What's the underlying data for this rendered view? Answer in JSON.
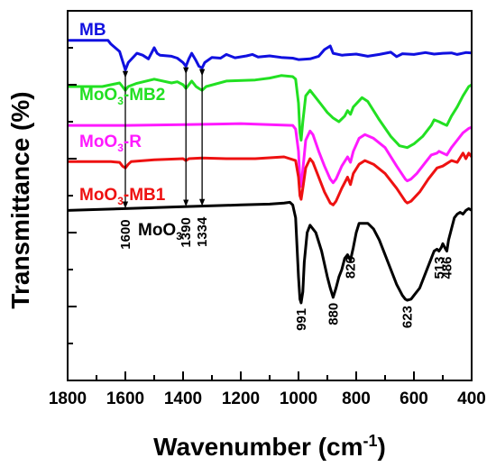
{
  "chart_data": {
    "type": "line",
    "title": "",
    "xlabel": "Wavenumber (cm",
    "xlabel_sup": "-1",
    "xlabel_end": ")",
    "ylabel": "Transmittance (%)",
    "xlim": [
      1800,
      400
    ],
    "x_reversed": true,
    "x_ticks": [
      "1800",
      "1600",
      "1400",
      "1200",
      "1000",
      "800",
      "600",
      "400"
    ],
    "y_tick_labels_shown": false,
    "grid": false,
    "legend": "inline labels beside each curve",
    "series": [
      {
        "name": "MB",
        "name_sub": "",
        "name_end": "",
        "color": "#1010e0",
        "x": [
          1800,
          1660,
          1650,
          1620,
          1610,
          1600,
          1590,
          1560,
          1540,
          1520,
          1500,
          1490,
          1480,
          1440,
          1420,
          1400,
          1390,
          1380,
          1370,
          1355,
          1345,
          1334,
          1325,
          1300,
          1270,
          1250,
          1220,
          1180,
          1160,
          1140,
          1100,
          1060,
          1020,
          1000,
          960,
          930,
          910,
          890,
          880,
          850,
          800,
          760,
          720,
          680,
          660,
          640,
          600,
          560,
          530,
          500,
          470,
          450,
          420,
          400
        ],
        "y": [
          8.0,
          8.0,
          9.0,
          11.0,
          13.5,
          16.0,
          14.0,
          11.5,
          12.0,
          13.0,
          10.0,
          11.5,
          12.0,
          12.3,
          12.8,
          14.0,
          15.0,
          13.0,
          11.5,
          13.5,
          15.0,
          15.5,
          14.0,
          12.6,
          12.8,
          11.8,
          12.7,
          12.2,
          11.8,
          12.5,
          12.2,
          12.6,
          12.8,
          13.2,
          13.0,
          12.3,
          10.5,
          9.5,
          11.5,
          12.0,
          11.7,
          12.3,
          11.8,
          11.2,
          12.4,
          11.6,
          11.8,
          11.3,
          11.7,
          11.5,
          11.4,
          11.8,
          11.3,
          11.4
        ]
      },
      {
        "name": "MoO",
        "name_sub": "3",
        "name_end": "-MB2",
        "color": "#22e022",
        "x": [
          1800,
          1680,
          1650,
          1620,
          1610,
          1600,
          1590,
          1560,
          1500,
          1440,
          1420,
          1400,
          1390,
          1380,
          1370,
          1355,
          1345,
          1334,
          1320,
          1250,
          1150,
          1100,
          1060,
          1020,
          1010,
          1000,
          995,
          991,
          985,
          975,
          960,
          940,
          920,
          900,
          880,
          860,
          840,
          830,
          820,
          810,
          780,
          760,
          720,
          680,
          650,
          623,
          600,
          570,
          540,
          530,
          513,
          500,
          486,
          470,
          450,
          430,
          410,
          400
        ],
        "y": [
          20.5,
          20.5,
          20.0,
          19.5,
          20.5,
          21.5,
          20.5,
          19.6,
          18.5,
          19.5,
          19.2,
          20.0,
          21.0,
          20.0,
          19.0,
          20.5,
          21.0,
          21.5,
          20.5,
          19.0,
          18.7,
          18.2,
          17.5,
          17.8,
          18.5,
          25.0,
          33.0,
          35.0,
          30.0,
          23.0,
          21.5,
          23.5,
          25.5,
          27.5,
          29.0,
          30.0,
          28.5,
          27.0,
          28.0,
          26.0,
          23.5,
          24.5,
          29.5,
          34.0,
          36.5,
          37.0,
          36.0,
          34.0,
          31.0,
          29.5,
          30.0,
          30.5,
          31.0,
          28.5,
          26.0,
          23.0,
          20.5,
          20.0
        ]
      },
      {
        "name": "MoO",
        "name_sub": "3",
        "name_end": "-R",
        "color": "#ff1aff",
        "x": [
          1800,
          1600,
          1400,
          1200,
          1100,
          1020,
          1010,
          1000,
          995,
          991,
          985,
          975,
          960,
          950,
          930,
          910,
          890,
          880,
          870,
          850,
          830,
          820,
          810,
          790,
          770,
          740,
          700,
          660,
          630,
          623,
          610,
          590,
          560,
          540,
          520,
          513,
          500,
          486,
          470,
          450,
          430,
          410,
          400
        ],
        "y": [
          31.0,
          31.0,
          30.8,
          30.5,
          30.8,
          31.0,
          32.0,
          38.0,
          46.0,
          47.5,
          43.0,
          35.0,
          32.5,
          33.5,
          38.0,
          42.0,
          45.5,
          46.5,
          45.5,
          42.0,
          39.5,
          41.0,
          38.0,
          34.5,
          33.5,
          34.5,
          37.0,
          42.0,
          45.5,
          46.0,
          45.5,
          44.0,
          41.0,
          39.0,
          38.5,
          38.0,
          38.5,
          39.0,
          37.0,
          35.0,
          33.0,
          31.8,
          31.5
        ]
      },
      {
        "name": "MoO",
        "name_sub": "3",
        "name_end": "-MB1",
        "color": "#ee1111",
        "x": [
          1800,
          1650,
          1620,
          1610,
          1600,
          1590,
          1580,
          1500,
          1400,
          1390,
          1380,
          1334,
          1250,
          1150,
          1050,
          1010,
          1000,
          995,
          991,
          985,
          975,
          960,
          950,
          930,
          910,
          890,
          880,
          870,
          850,
          830,
          820,
          810,
          790,
          770,
          740,
          700,
          660,
          630,
          623,
          610,
          580,
          550,
          520,
          500,
          470,
          450,
          430,
          420,
          410,
          400
        ],
        "y": [
          40.8,
          40.8,
          41.0,
          42.0,
          42.5,
          41.5,
          40.8,
          40.3,
          40.0,
          40.5,
          40.0,
          39.8,
          40.0,
          40.0,
          39.5,
          40.5,
          45.0,
          50.0,
          51.0,
          48.0,
          42.5,
          40.0,
          41.0,
          45.0,
          49.0,
          52.0,
          52.5,
          51.5,
          48.0,
          45.0,
          47.0,
          44.0,
          41.5,
          40.5,
          41.5,
          44.0,
          48.0,
          51.5,
          52.0,
          51.5,
          49.0,
          45.5,
          42.5,
          42.0,
          40.5,
          41.0,
          38.5,
          40.0,
          38.5,
          39.5
        ]
      },
      {
        "name": "MoO",
        "name_sub": "3",
        "name_end": "",
        "color": "#000000",
        "x": [
          1800,
          1600,
          1400,
          1200,
          1100,
          1050,
          1030,
          1020,
          1010,
          1005,
          1000,
          995,
          991,
          985,
          980,
          970,
          960,
          940,
          920,
          900,
          890,
          880,
          870,
          860,
          850,
          840,
          830,
          820,
          810,
          800,
          790,
          760,
          740,
          720,
          700,
          680,
          660,
          640,
          630,
          623,
          610,
          600,
          580,
          560,
          540,
          530,
          520,
          513,
          505,
          500,
          490,
          486,
          480,
          470,
          460,
          450,
          440,
          430,
          420,
          410,
          400
        ],
        "y": [
          54.0,
          53.5,
          53.0,
          52.5,
          52.3,
          52.0,
          51.8,
          52.5,
          56.0,
          64.0,
          72.0,
          78.0,
          79.0,
          76.0,
          68.0,
          60.0,
          58.0,
          60.0,
          65.0,
          72.0,
          75.0,
          77.5,
          75.0,
          72.0,
          70.0,
          67.0,
          66.0,
          67.5,
          64.0,
          60.0,
          57.5,
          57.5,
          59.0,
          62.0,
          66.0,
          70.0,
          74.0,
          77.0,
          78.0,
          78.3,
          78.0,
          77.0,
          75.0,
          71.0,
          67.0,
          65.0,
          64.5,
          65.0,
          64.0,
          63.0,
          64.5,
          65.0,
          62.0,
          59.0,
          56.0,
          55.0,
          54.5,
          55.0,
          54.0,
          53.5,
          54.0
        ]
      }
    ],
    "peak_annotations": [
      {
        "label": "1600",
        "x": 1600
      },
      {
        "label": "1390",
        "x": 1390
      },
      {
        "label": "1334",
        "x": 1334
      },
      {
        "label": "991",
        "x": 991
      },
      {
        "label": "880",
        "x": 880
      },
      {
        "label": "820",
        "x": 820
      },
      {
        "label": "623",
        "x": 623
      },
      {
        "label": "513",
        "x": 513
      },
      {
        "label": "486",
        "x": 486
      }
    ],
    "arrows_at": [
      1600,
      1390,
      1334
    ]
  }
}
